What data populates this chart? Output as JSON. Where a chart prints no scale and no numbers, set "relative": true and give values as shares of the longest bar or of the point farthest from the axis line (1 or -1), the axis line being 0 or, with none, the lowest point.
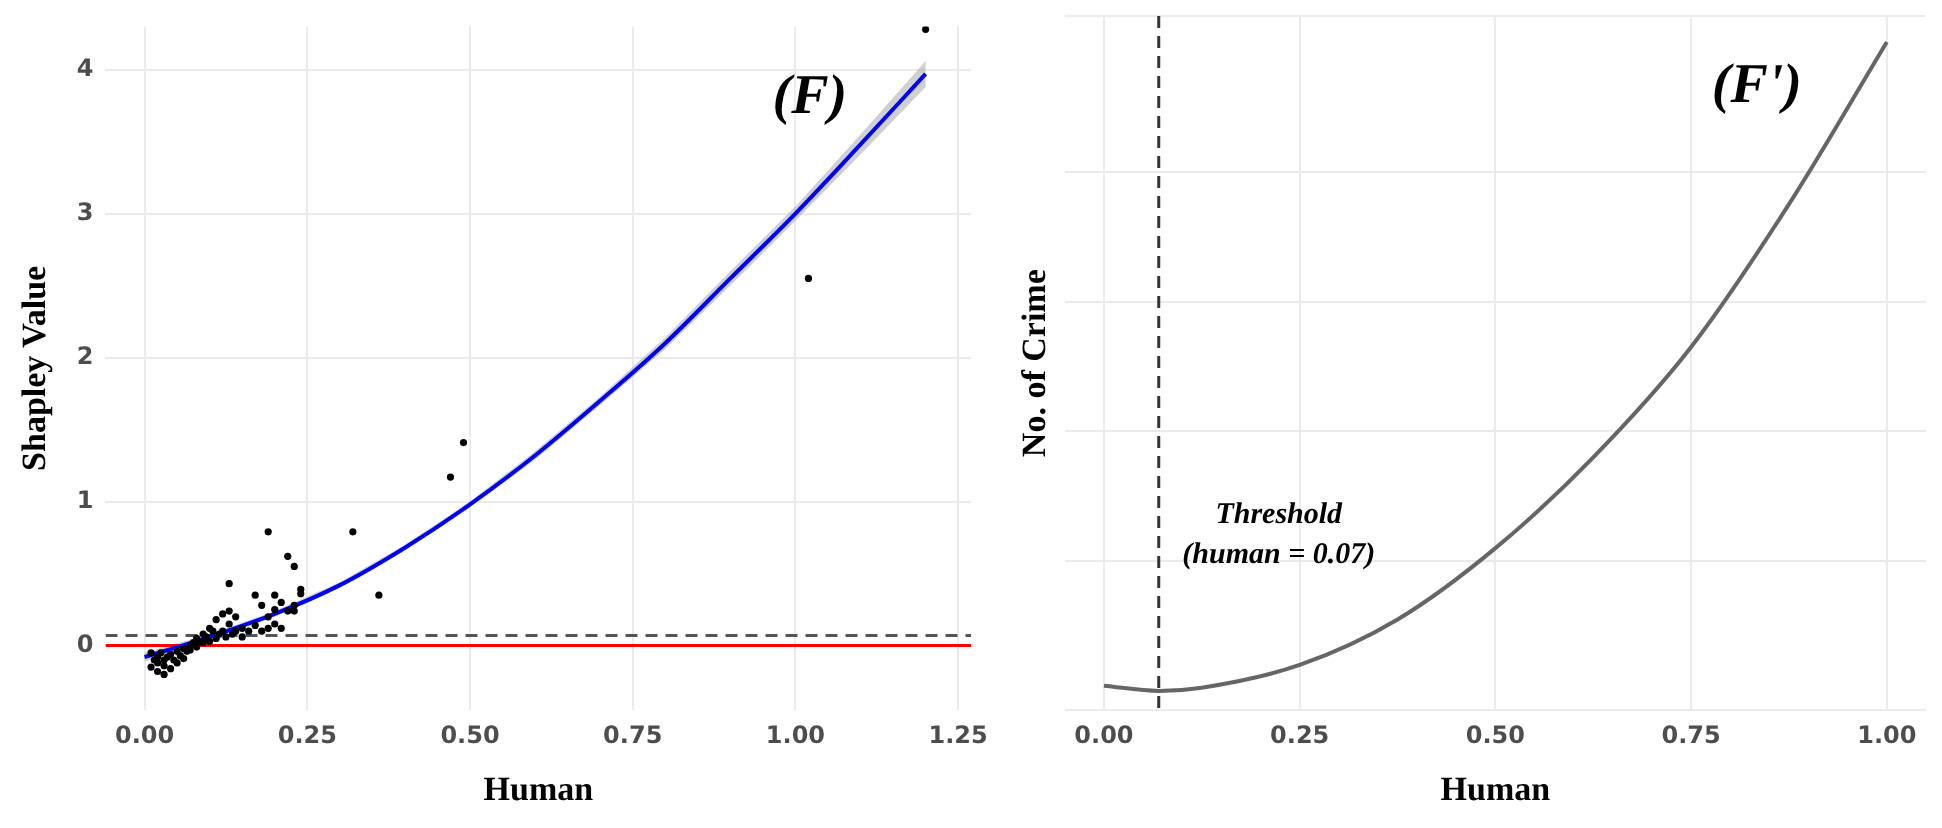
{
  "chart_data": [
    {
      "type": "scatter",
      "title": "(F)",
      "xlabel": "Human",
      "ylabel": "Shapley Value",
      "xlim": [
        -0.06,
        1.27
      ],
      "xticks": [
        {
          "value": 0,
          "label": "0.00"
        },
        {
          "value": 0.25,
          "label": "0.25"
        },
        {
          "value": 0.5,
          "label": "0.50"
        },
        {
          "value": 0.75,
          "label": "0.75"
        },
        {
          "value": 1,
          "label": "1.00"
        },
        {
          "value": 1.25,
          "label": "1.25"
        }
      ],
      "ylim": [
        -0.45,
        4.3
      ],
      "yticks": [
        0,
        1,
        2,
        3,
        4
      ],
      "grid": true,
      "legend": false,
      "marker": "circle",
      "series": [
        {
          "color": "#000000",
          "x": [
            0.01,
            0.01,
            0.015,
            0.02,
            0.02,
            0.02,
            0.025,
            0.03,
            0.03,
            0.03,
            0.035,
            0.04,
            0.04,
            0.045,
            0.05,
            0.05,
            0.055,
            0.06,
            0.06,
            0.065,
            0.07,
            0.07,
            0.075,
            0.08,
            0.08,
            0.085,
            0.09,
            0.09,
            0.095,
            0.1,
            0.1,
            0.105,
            0.11,
            0.11,
            0.115,
            0.12,
            0.12,
            0.125,
            0.13,
            0.13,
            0.135,
            0.14,
            0.14,
            0.15,
            0.15,
            0.16,
            0.17,
            0.17,
            0.18,
            0.18,
            0.19,
            0.19,
            0.2,
            0.2,
            0.21,
            0.21,
            0.22,
            0.23,
            0.23,
            0.24,
            0.13,
            0.19,
            0.2,
            0.22,
            0.23,
            0.24,
            0.32,
            0.36,
            0.47,
            0.49,
            1.02,
            1.2
          ],
          "values": [
            -0.05,
            -0.15,
            -0.1,
            -0.08,
            -0.18,
            -0.12,
            -0.05,
            -0.2,
            -0.1,
            -0.14,
            -0.08,
            -0.16,
            -0.06,
            -0.1,
            -0.04,
            -0.12,
            -0.07,
            -0.02,
            -0.09,
            -0.04,
            0.0,
            -0.03,
            0.02,
            0.05,
            -0.01,
            0.03,
            0.08,
            0.02,
            0.06,
            0.12,
            0.03,
            0.1,
            0.18,
            0.05,
            0.08,
            0.22,
            0.1,
            0.06,
            0.15,
            0.24,
            0.08,
            0.2,
            0.1,
            0.12,
            0.06,
            0.1,
            0.35,
            0.14,
            0.28,
            0.1,
            0.2,
            0.12,
            0.25,
            0.15,
            0.3,
            0.12,
            0.24,
            0.28,
            0.24,
            0.39,
            0.43,
            0.79,
            0.35,
            0.62,
            0.55,
            0.36,
            0.79,
            0.35,
            1.17,
            1.41,
            2.55,
            4.28
          ]
        },
        {
          "type": "line",
          "color": "#0000ff",
          "marker": "none",
          "x": [
            0,
            0.1,
            0.2,
            0.3,
            0.4,
            0.5,
            0.6,
            0.7,
            0.8,
            0.9,
            1.0,
            1.1,
            1.2
          ],
          "values": [
            -0.08,
            0.06,
            0.22,
            0.42,
            0.68,
            0.98,
            1.32,
            1.7,
            2.1,
            2.55,
            3.0,
            3.48,
            3.97
          ],
          "lower": [
            -0.11,
            0.04,
            0.2,
            0.4,
            0.66,
            0.96,
            1.29,
            1.67,
            2.06,
            2.5,
            2.95,
            3.41,
            3.88
          ],
          "upper": [
            -0.05,
            0.08,
            0.24,
            0.44,
            0.7,
            1.0,
            1.35,
            1.73,
            2.14,
            2.6,
            3.05,
            3.55,
            4.06
          ]
        }
      ],
      "ref_lines": [
        {
          "axis": "y",
          "value": 0,
          "color": "#ff0000",
          "line_style": "solid"
        },
        {
          "axis": "y",
          "value": 0.07,
          "color": "#555555",
          "line_style": "dashed"
        }
      ]
    },
    {
      "type": "line",
      "title": "(F')",
      "xlabel": "Human",
      "ylabel": "No. of Crime",
      "relative": true,
      "xlim": [
        -0.05,
        1.05
      ],
      "xticks": [
        {
          "value": 0,
          "label": "0.00"
        },
        {
          "value": 0.25,
          "label": "0.25"
        },
        {
          "value": 0.5,
          "label": "0.50"
        },
        {
          "value": 0.75,
          "label": "0.75"
        },
        {
          "value": 1,
          "label": "1.00"
        }
      ],
      "grid": true,
      "legend": false,
      "marker": "none",
      "series": [
        {
          "color": "#666666",
          "x": [
            0,
            0.07,
            0.125,
            0.25,
            0.375,
            0.5,
            0.625,
            0.75,
            0.875,
            1.0
          ],
          "values": [
            0.008,
            0,
            0.005,
            0.04,
            0.11,
            0.22,
            0.36,
            0.53,
            0.75,
            1
          ]
        }
      ],
      "ref_lines": [
        {
          "axis": "x",
          "value": 0.07,
          "label": "Threshold (human = 0.07)",
          "color": "#333333",
          "line_style": "dashed"
        }
      ]
    }
  ]
}
